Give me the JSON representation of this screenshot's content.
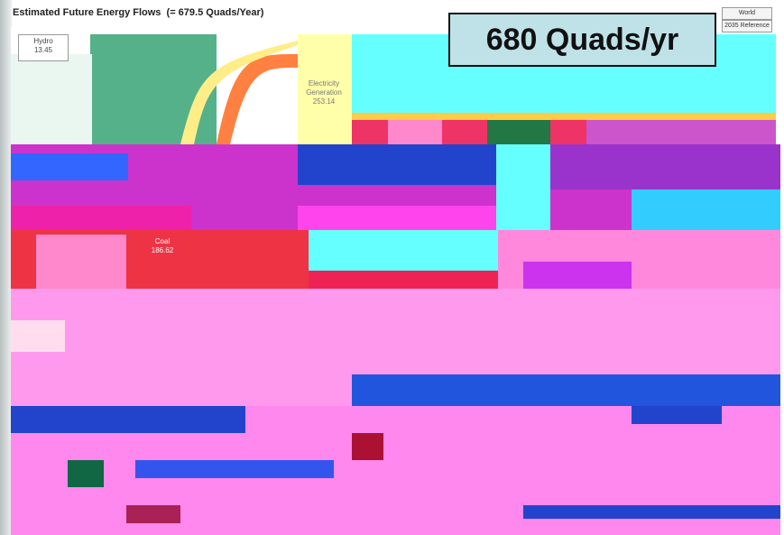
{
  "header": {
    "title": "Estimated Future Energy Flows  (= 679.5 Quads/Year)"
  },
  "buttons": [
    "World",
    "2035 Reference"
  ],
  "callout": "680 Quads/yr",
  "labels": [
    {
      "name": "Hydro",
      "value": "13.45"
    },
    {
      "name": "Electricity Generation",
      "value": "253.14"
    },
    {
      "name": "Coal",
      "value": "186.62"
    }
  ]
}
